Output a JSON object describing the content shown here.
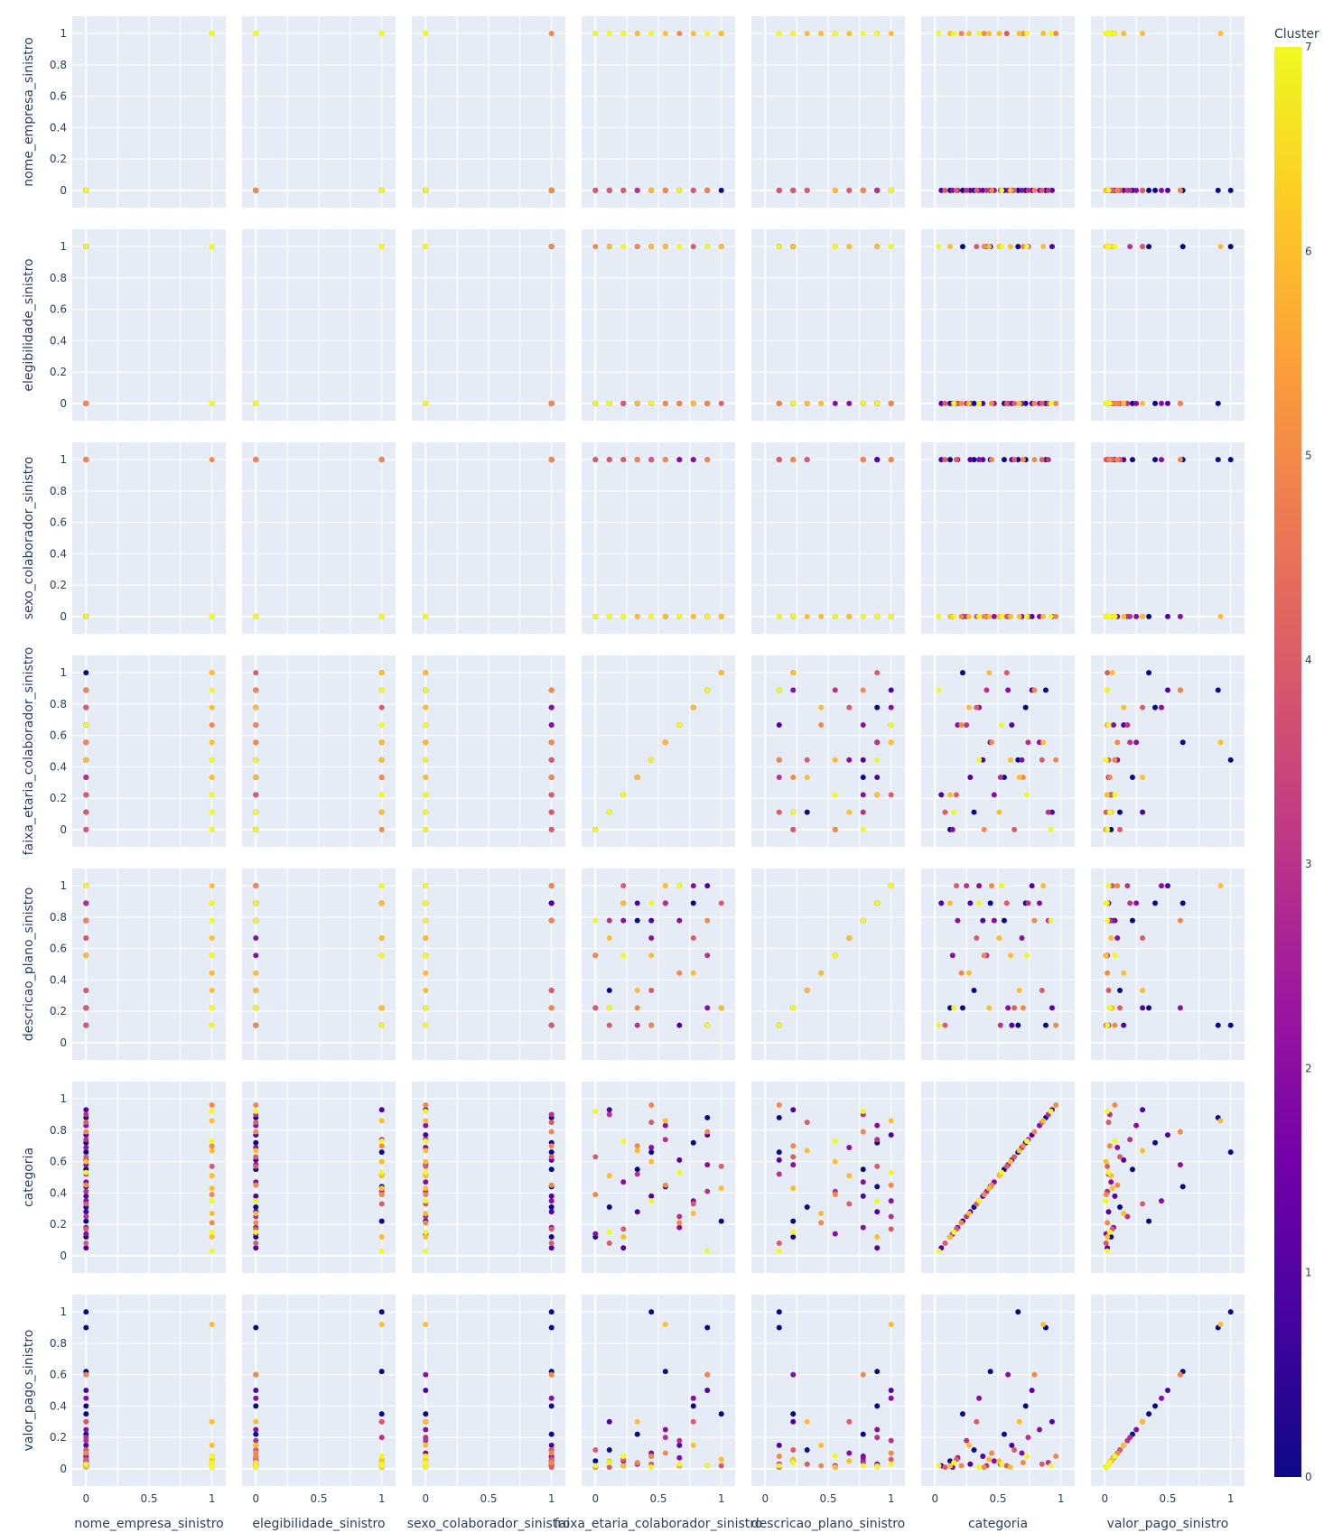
{
  "chart_data": {
    "type": "scatter",
    "variant": "scatter-matrix",
    "dimensions": [
      "nome_empresa_sinistro",
      "elegibilidade_sinistro",
      "sexo_colaborador_sinistro",
      "faixa_etaria_colaborador_sinistro",
      "descricao_plano_sinistro",
      "categoria",
      "valor_pago_sinistro"
    ],
    "axis_range": [
      0,
      1
    ],
    "x_ticks": [
      "0",
      "0.5",
      "1"
    ],
    "y_ticks": [
      "0",
      "0.2",
      "0.4",
      "0.6",
      "0.8",
      "1"
    ],
    "grid": true,
    "color_by": "Cluster",
    "colorbar": {
      "title": "Cluster",
      "range": [
        0,
        7
      ],
      "ticks": [
        "0",
        "1",
        "2",
        "3",
        "4",
        "5",
        "6",
        "7"
      ],
      "colorscale": [
        "#0d0887",
        "#46039f",
        "#7201a8",
        "#9c179e",
        "#bd3786",
        "#d8576b",
        "#ed7953",
        "#fb9f3a",
        "#fdca26",
        "#f0f921"
      ]
    },
    "levels": {
      "nome_empresa_sinistro": [
        0,
        1
      ],
      "elegibilidade_sinistro": [
        0,
        1
      ],
      "sexo_colaborador_sinistro": [
        0,
        1
      ],
      "faixa_etaria_colaborador_sinistro": [
        0,
        0.111,
        0.222,
        0.333,
        0.444,
        0.556,
        0.667,
        0.778,
        0.889,
        1
      ],
      "descricao_plano_sinistro": [
        0,
        0.111,
        0.222,
        0.333,
        0.444,
        0.556,
        0.667,
        0.778,
        0.889,
        1
      ],
      "categoria": "continuous",
      "valor_pago_sinistro": "continuous-skewed"
    },
    "records": [
      [
        0,
        0,
        1,
        0,
        0.222,
        0.12,
        0.05,
        0
      ],
      [
        0,
        0,
        1,
        0.111,
        0.333,
        0.31,
        0.12,
        0
      ],
      [
        0,
        0,
        1,
        0.333,
        0.778,
        0.55,
        0.22,
        0
      ],
      [
        0,
        0,
        1,
        0.778,
        0.889,
        0.72,
        0.4,
        0
      ],
      [
        0,
        0,
        1,
        0.889,
        0.111,
        0.88,
        0.9,
        0
      ],
      [
        0,
        1,
        1,
        0.556,
        0.889,
        0.44,
        0.62,
        0
      ],
      [
        0,
        1,
        1,
        0.444,
        0.111,
        0.66,
        1,
        0
      ],
      [
        0,
        1,
        0,
        1,
        0.222,
        0.22,
        0.35,
        0
      ],
      [
        0,
        0,
        1,
        0.222,
        0.889,
        0.05,
        0.02,
        1
      ],
      [
        0,
        0,
        1,
        0.444,
        0.778,
        0.38,
        0.08,
        1
      ],
      [
        0,
        0,
        1,
        0.667,
        0.111,
        0.61,
        0.15,
        1
      ],
      [
        0,
        0,
        0,
        0.889,
        1,
        0.77,
        0.5,
        1
      ],
      [
        0,
        1,
        0,
        0.111,
        0.222,
        0.93,
        0.3,
        1
      ],
      [
        0,
        0,
        1,
        0.333,
        0.889,
        0.28,
        0.03,
        1
      ],
      [
        0,
        0,
        0,
        0,
        0.556,
        0.14,
        0.01,
        2
      ],
      [
        0,
        0,
        0,
        0.222,
        0.778,
        0.47,
        0.05,
        2
      ],
      [
        0,
        0,
        0,
        0.444,
        0.667,
        0.69,
        0.1,
        2
      ],
      [
        0,
        0,
        0,
        0.556,
        0.889,
        0.83,
        0.25,
        2
      ],
      [
        0,
        0,
        1,
        0.778,
        1,
        0.35,
        0.45,
        2
      ],
      [
        0,
        0,
        0,
        0.889,
        0.222,
        0.58,
        0.6,
        2
      ],
      [
        0,
        0,
        1,
        0.667,
        0.778,
        0.18,
        0.07,
        2
      ],
      [
        0,
        1,
        0,
        0.333,
        0.111,
        0.52,
        0.03,
        3
      ],
      [
        0,
        1,
        0,
        0.556,
        0.889,
        0.74,
        0.2,
        3
      ],
      [
        0,
        0,
        0,
        0.667,
        1,
        0.25,
        0.18,
        3
      ],
      [
        0,
        0,
        1,
        0.111,
        0.778,
        0.9,
        0.04,
        3
      ],
      [
        0,
        1,
        0,
        0.889,
        0.556,
        0.41,
        0.02,
        3
      ],
      [
        0,
        0,
        1,
        0,
        0.222,
        0.63,
        0.12,
        4
      ],
      [
        0,
        0,
        1,
        0.222,
        1,
        0.17,
        0.06,
        4
      ],
      [
        0,
        0,
        1,
        0.444,
        0.333,
        0.85,
        0.03,
        4
      ],
      [
        0,
        1,
        0,
        0.778,
        0.667,
        0.33,
        0.3,
        4
      ],
      [
        1,
        0,
        0,
        1,
        0.889,
        0.57,
        0.02,
        4
      ],
      [
        0,
        0,
        1,
        0.111,
        0.111,
        0.08,
        0.01,
        4
      ],
      [
        1,
        1,
        1,
        0.333,
        0.222,
        0.7,
        0.04,
        5
      ],
      [
        0,
        0,
        1,
        0.556,
        1,
        0.45,
        0.1,
        5
      ],
      [
        1,
        0,
        0,
        0.667,
        0.444,
        0.21,
        0.02,
        5
      ],
      [
        0,
        0,
        1,
        0.889,
        0.778,
        0.79,
        0.6,
        5
      ],
      [
        1,
        0,
        0,
        0.444,
        0.111,
        0.96,
        0.08,
        5
      ],
      [
        1,
        1,
        0,
        0,
        0.556,
        0.39,
        0.01,
        5
      ],
      [
        1,
        1,
        0,
        0.222,
        0.889,
        0.12,
        0.02,
        6
      ],
      [
        1,
        1,
        0,
        0.111,
        0.667,
        0.51,
        0.05,
        6
      ],
      [
        1,
        0,
        0,
        0.333,
        0.333,
        0.67,
        0.3,
        6
      ],
      [
        1,
        1,
        0,
        0.556,
        1,
        0.86,
        0.92,
        6
      ],
      [
        1,
        0,
        0,
        0.778,
        0.444,
        0.27,
        0.15,
        6
      ],
      [
        1,
        1,
        0,
        1,
        0.222,
        0.43,
        0.06,
        6
      ],
      [
        0,
        1,
        0,
        0.444,
        0.556,
        0.6,
        0.01,
        6
      ],
      [
        1,
        0,
        0,
        0,
        0.778,
        0.92,
        0.02,
        7
      ],
      [
        1,
        0,
        0,
        0.111,
        0.222,
        0.15,
        0.04,
        7
      ],
      [
        1,
        1,
        0,
        0.222,
        0.556,
        0.73,
        0.08,
        7
      ],
      [
        1,
        0,
        0,
        0.444,
        0.889,
        0.35,
        0.01,
        7
      ],
      [
        1,
        1,
        0,
        0.889,
        0.111,
        0.03,
        0.02,
        7
      ],
      [
        0,
        1,
        0,
        0.667,
        1,
        0.53,
        0.03,
        7
      ]
    ]
  }
}
